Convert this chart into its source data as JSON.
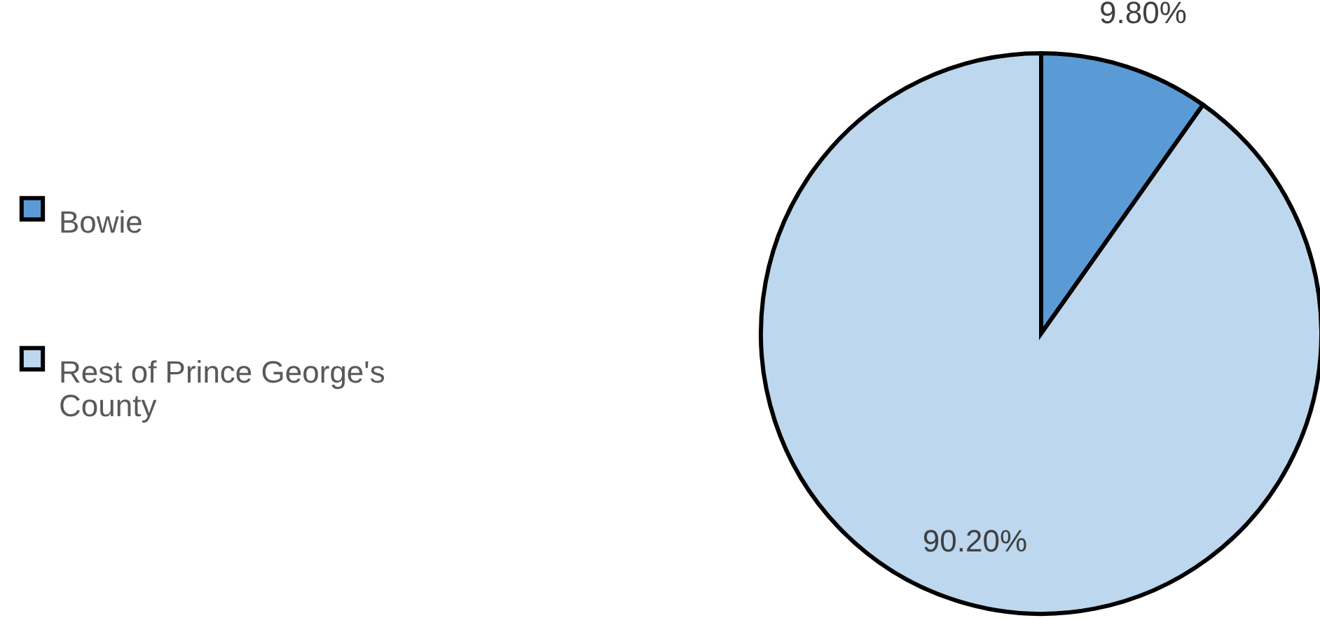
{
  "chart_data": {
    "type": "pie",
    "categories": [
      "Bowie",
      "Rest of Prince George's County"
    ],
    "values": [
      9.8,
      90.2
    ],
    "colors": [
      "#5b9bd5",
      "#bdd7ee"
    ],
    "value_labels": [
      "9.80%",
      "90.20%"
    ],
    "legend": "left"
  }
}
